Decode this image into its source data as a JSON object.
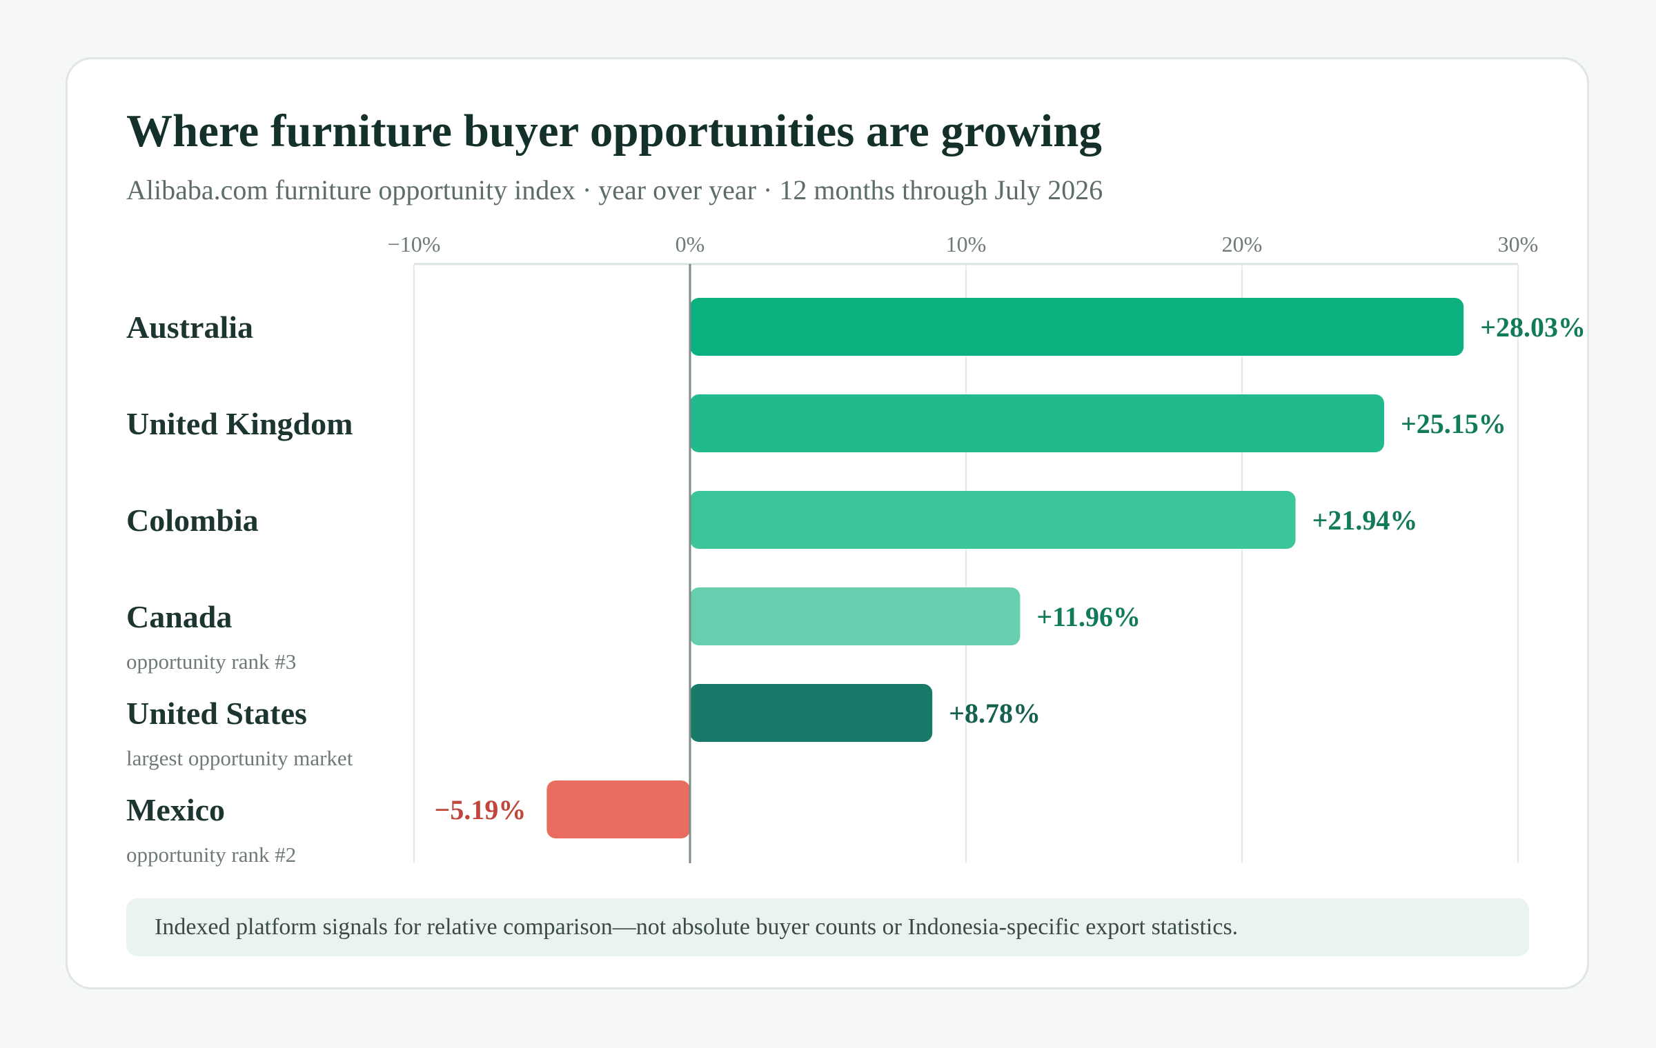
{
  "chart_data": {
    "type": "bar",
    "orientation": "horizontal",
    "title": "Where furniture buyer opportunities are growing",
    "subtitle": "Alibaba.com furniture opportunity index · year over year · 12 months through July 2026",
    "xlim": [
      -10,
      30
    ],
    "ticks": [
      {
        "value": -10,
        "label": "−10%"
      },
      {
        "value": 0,
        "label": "0%"
      },
      {
        "value": 10,
        "label": "10%"
      },
      {
        "value": 20,
        "label": "20%"
      },
      {
        "value": 30,
        "label": "30%"
      }
    ],
    "grid": true,
    "categories": [
      {
        "name": "Australia",
        "note": "",
        "value": 28.03,
        "label": "+28.03%",
        "color": "#0caf7e",
        "label_color": "#117a5a"
      },
      {
        "name": "United Kingdom",
        "note": "",
        "value": 25.15,
        "label": "+25.15%",
        "color": "#22ba8d",
        "label_color": "#117a5a"
      },
      {
        "name": "Colombia",
        "note": "",
        "value": 21.94,
        "label": "+21.94%",
        "color": "#3cc49b",
        "label_color": "#117a5a"
      },
      {
        "name": "Canada",
        "note": "opportunity rank #3",
        "value": 11.96,
        "label": "+11.96%",
        "color": "#68ceb0",
        "label_color": "#117a5a"
      },
      {
        "name": "United States",
        "note": "largest opportunity market",
        "value": 8.78,
        "label": "+8.78%",
        "color": "#177a69",
        "label_color": "#15614f"
      },
      {
        "name": "Mexico",
        "note": "opportunity rank #2",
        "value": -5.19,
        "label": "−5.19%",
        "color": "#e86c60",
        "label_color": "#c0463c"
      }
    ]
  },
  "footnote": "Indexed platform signals for relative comparison—not absolute buyer counts or Indonesia-specific export statistics."
}
